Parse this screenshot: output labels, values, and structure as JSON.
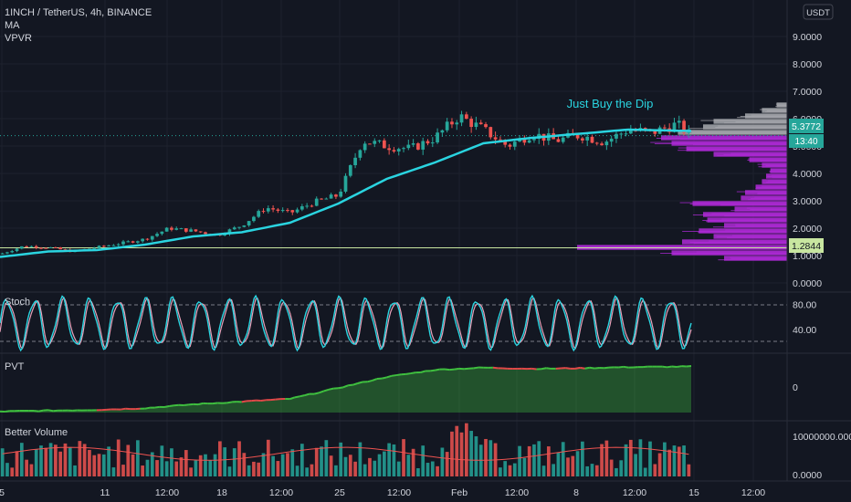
{
  "header": {
    "symbol_line": "1INCH / TetherUS, 4h, BINANCE",
    "indicators": [
      "MA",
      "VPVR"
    ],
    "currency_badge": "USDT"
  },
  "colors": {
    "background": "#131722",
    "up_candle": "#26a69a",
    "down_candle": "#ef5350",
    "ma_line": "#2ad4e0",
    "vpvr_purple": "#b02ad8",
    "vpvr_gray": "#a7a9ae",
    "stoch_k": "#2ad4e0",
    "stoch_d": "#e8a0b8",
    "pvt_green": "#3fbf3f",
    "pvt_red": "#e04848",
    "price_label_bg": "#26a69a"
  },
  "chart_data": [
    {
      "type": "candlestick",
      "pane": "price",
      "title": "",
      "ylim": [
        0,
        10
      ],
      "y_ticks": [
        "0.0000",
        "1.0000",
        "2.0000",
        "3.0000",
        "4.0000",
        "5.0000",
        "6.0000",
        "7.0000",
        "8.0000",
        "9.0000"
      ],
      "x_ticks": [
        "5",
        "11",
        "12:00",
        "18",
        "12:00",
        "25",
        "12:00",
        "Feb",
        "12:00",
        "8",
        "12:00",
        "15",
        "12:00"
      ],
      "last_price_label": "5.3772",
      "countdown_label": "13:40",
      "marked_price_label": "1.2844",
      "annotation": "Just Buy the Dip",
      "price_path": [
        [
          0,
          1.05
        ],
        [
          5,
          1.35
        ],
        [
          10,
          1.3
        ],
        [
          15,
          1.15
        ],
        [
          20,
          1.3
        ],
        [
          25,
          1.45
        ],
        [
          30,
          1.6
        ],
        [
          35,
          2.0
        ],
        [
          40,
          1.9
        ],
        [
          45,
          1.75
        ],
        [
          50,
          2.1
        ],
        [
          55,
          2.75
        ],
        [
          60,
          2.55
        ],
        [
          65,
          2.95
        ],
        [
          70,
          3.2
        ],
        [
          75,
          5.2
        ],
        [
          80,
          5.0
        ],
        [
          85,
          4.9
        ],
        [
          90,
          5.3
        ],
        [
          95,
          6.1
        ],
        [
          100,
          5.6
        ],
        [
          105,
          5.0
        ],
        [
          110,
          5.45
        ],
        [
          115,
          5.2
        ],
        [
          120,
          5.4
        ],
        [
          125,
          5.15
        ],
        [
          130,
          5.6
        ],
        [
          135,
          5.5
        ],
        [
          140,
          5.8
        ],
        [
          143,
          5.38
        ]
      ],
      "ma_path": [
        [
          0,
          0.95
        ],
        [
          10,
          1.15
        ],
        [
          20,
          1.2
        ],
        [
          30,
          1.4
        ],
        [
          40,
          1.7
        ],
        [
          50,
          1.85
        ],
        [
          60,
          2.2
        ],
        [
          70,
          2.9
        ],
        [
          80,
          3.8
        ],
        [
          90,
          4.4
        ],
        [
          100,
          5.1
        ],
        [
          110,
          5.3
        ],
        [
          120,
          5.45
        ],
        [
          130,
          5.6
        ],
        [
          143,
          5.55
        ]
      ],
      "vpvr_profile": [
        [
          0.9,
          0.3
        ],
        [
          1.1,
          0.55
        ],
        [
          1.3,
          1.0
        ],
        [
          1.5,
          0.5
        ],
        [
          1.7,
          0.35
        ],
        [
          1.9,
          0.42
        ],
        [
          2.1,
          0.3
        ],
        [
          2.3,
          0.38
        ],
        [
          2.5,
          0.4
        ],
        [
          2.7,
          0.25
        ],
        [
          2.9,
          0.45
        ],
        [
          3.1,
          0.22
        ],
        [
          3.3,
          0.2
        ],
        [
          3.5,
          0.15
        ],
        [
          3.7,
          0.12
        ],
        [
          3.9,
          0.1
        ],
        [
          4.1,
          0.08
        ],
        [
          4.3,
          0.12
        ],
        [
          4.5,
          0.18
        ],
        [
          4.7,
          0.35
        ],
        [
          4.9,
          0.48
        ],
        [
          5.1,
          0.55
        ],
        [
          5.3,
          0.6
        ],
        [
          5.5,
          0.52
        ],
        [
          5.7,
          0.4
        ],
        [
          5.9,
          0.35
        ],
        [
          6.1,
          0.2
        ],
        [
          6.3,
          0.12
        ],
        [
          6.5,
          0.05
        ]
      ]
    },
    {
      "type": "line",
      "pane": "stoch",
      "title": "Stoch",
      "ylim": [
        0,
        100
      ],
      "y_ticks": [
        "40.00",
        "80.00"
      ],
      "upper_band": 80,
      "lower_band": 20,
      "cycle_peaks": 25
    },
    {
      "type": "area",
      "pane": "pvt",
      "title": "PVT",
      "y_ticks": [
        "0"
      ],
      "path": [
        [
          0,
          0.02
        ],
        [
          20,
          0.05
        ],
        [
          30,
          0.08
        ],
        [
          40,
          0.15
        ],
        [
          50,
          0.2
        ],
        [
          60,
          0.25
        ],
        [
          70,
          0.45
        ],
        [
          80,
          0.65
        ],
        [
          90,
          0.78
        ],
        [
          100,
          0.82
        ],
        [
          110,
          0.8
        ],
        [
          120,
          0.81
        ],
        [
          130,
          0.83
        ],
        [
          143,
          0.84
        ]
      ],
      "red_segments": [
        [
          20,
          28
        ],
        [
          50,
          58
        ],
        [
          102,
          110
        ],
        [
          115,
          120
        ]
      ]
    },
    {
      "type": "bar",
      "pane": "volume",
      "title": "Better Volume",
      "y_ticks": [
        "0.0000",
        "10000000.0000"
      ],
      "bar_count": 143
    }
  ]
}
